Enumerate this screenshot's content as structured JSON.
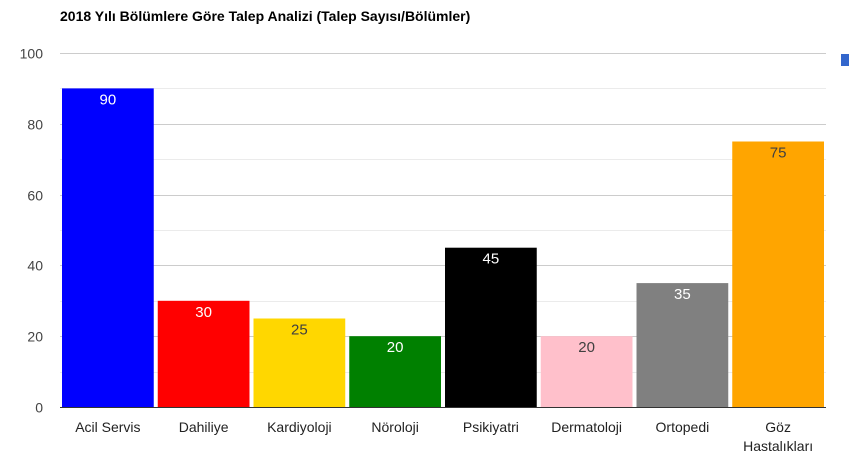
{
  "chart_data": {
    "type": "bar",
    "title": "2018 Yılı Bölümlere Göre Talep Analizi (Talep Sayısı/Bölümler)",
    "xlabel": "",
    "ylabel": "",
    "ylim": [
      0,
      100
    ],
    "yticks": [
      0,
      20,
      40,
      60,
      80,
      100
    ],
    "grid": true,
    "legend": "top-right",
    "legend_color": "#3366cc",
    "categories": [
      "Acil Servis",
      "Dahiliye",
      "Kardiyoloji",
      "Nöroloji",
      "Psikiyatri",
      "Dermatoloji",
      "Ortopedi",
      "Göz Hastalıkları"
    ],
    "values": [
      90,
      30,
      25,
      20,
      45,
      20,
      35,
      75
    ],
    "colors": [
      "#0000ff",
      "#ff0000",
      "#ffd700",
      "#008000",
      "#000000",
      "#ffc0cb",
      "#808080",
      "#ffa500"
    ],
    "label_colors": [
      "#ffffff",
      "#ffffff",
      "#404040",
      "#ffffff",
      "#ffffff",
      "#404040",
      "#ffffff",
      "#404040"
    ]
  }
}
